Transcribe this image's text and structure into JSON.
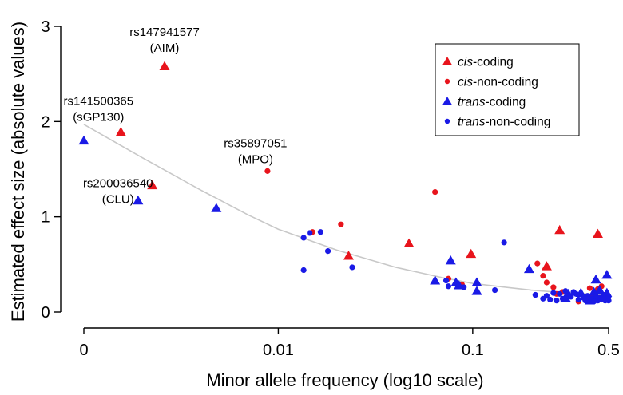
{
  "chart_data": {
    "type": "scatter",
    "xlabel": "Minor allele frequency (log10 scale)",
    "ylabel": "Estimated effect size (absolute values)",
    "x_scale": "log10",
    "ylim": [
      0,
      3
    ],
    "x_ticks": [
      {
        "value": 0.001,
        "label": "0"
      },
      {
        "value": 0.01,
        "label": "0.01"
      },
      {
        "value": 0.1,
        "label": "0.1"
      },
      {
        "value": 0.5,
        "label": "0.5"
      }
    ],
    "y_ticks": [
      {
        "value": 0,
        "label": "0"
      },
      {
        "value": 1,
        "label": "1"
      },
      {
        "value": 2,
        "label": "2"
      },
      {
        "value": 3,
        "label": "3"
      }
    ],
    "legend_position": "top-right",
    "legend": [
      {
        "series": "cis-coding",
        "italic": "cis",
        "rest": "-coding",
        "color": "#e8141c",
        "shape": "triangle"
      },
      {
        "series": "cis-non-coding",
        "italic": "cis",
        "rest": "-non-coding",
        "color": "#e8141c",
        "shape": "circle"
      },
      {
        "series": "trans-coding",
        "italic": "trans",
        "rest": "-coding",
        "color": "#1a1ae6",
        "shape": "triangle"
      },
      {
        "series": "trans-non-coding",
        "italic": "trans",
        "rest": "-non-coding",
        "color": "#1a1ae6",
        "shape": "circle"
      }
    ],
    "trend_line": {
      "color": "#c8c8c8",
      "points": [
        [
          0.001,
          1.97
        ],
        [
          0.002,
          1.62
        ],
        [
          0.004,
          1.28
        ],
        [
          0.007,
          1.02
        ],
        [
          0.01,
          0.87
        ],
        [
          0.02,
          0.65
        ],
        [
          0.04,
          0.47
        ],
        [
          0.07,
          0.36
        ],
        [
          0.1,
          0.3
        ],
        [
          0.2,
          0.23
        ],
        [
          0.3,
          0.2
        ],
        [
          0.5,
          0.18
        ]
      ]
    },
    "series": [
      {
        "name": "cis-coding",
        "color": "#e8141c",
        "shape": "triangle",
        "points": [
          [
            0.00155,
            1.89
          ],
          [
            0.0026,
            2.58
          ],
          [
            0.00225,
            1.33
          ],
          [
            0.023,
            0.59
          ],
          [
            0.047,
            0.72
          ],
          [
            0.098,
            0.61
          ],
          [
            0.28,
            0.86
          ],
          [
            0.24,
            0.48
          ],
          [
            0.44,
            0.82
          ]
        ]
      },
      {
        "name": "cis-non-coding",
        "color": "#e8141c",
        "shape": "circle",
        "points": [
          [
            0.0088,
            1.48
          ],
          [
            0.064,
            1.26
          ],
          [
            0.015,
            0.84
          ],
          [
            0.021,
            0.92
          ],
          [
            0.088,
            0.29
          ],
          [
            0.075,
            0.35
          ],
          [
            0.215,
            0.51
          ],
          [
            0.23,
            0.38
          ],
          [
            0.24,
            0.31
          ],
          [
            0.26,
            0.26
          ],
          [
            0.27,
            0.19
          ],
          [
            0.29,
            0.21
          ],
          [
            0.31,
            0.18
          ],
          [
            0.35,
            0.11
          ],
          [
            0.38,
            0.15
          ],
          [
            0.41,
            0.17
          ],
          [
            0.44,
            0.24
          ],
          [
            0.46,
            0.27
          ],
          [
            0.42,
            0.13
          ],
          [
            0.4,
            0.25
          ],
          [
            0.43,
            0.2
          ]
        ]
      },
      {
        "name": "trans-coding",
        "color": "#1a1ae6",
        "shape": "triangle",
        "points": [
          [
            0.001,
            1.8
          ],
          [
            0.0019,
            1.17
          ],
          [
            0.0048,
            1.09
          ],
          [
            0.064,
            0.33
          ],
          [
            0.077,
            0.54
          ],
          [
            0.082,
            0.31
          ],
          [
            0.085,
            0.28
          ],
          [
            0.105,
            0.31
          ],
          [
            0.105,
            0.22
          ],
          [
            0.195,
            0.45
          ],
          [
            0.3,
            0.15
          ],
          [
            0.31,
            0.19
          ],
          [
            0.36,
            0.2
          ],
          [
            0.4,
            0.12
          ],
          [
            0.43,
            0.34
          ],
          [
            0.45,
            0.23
          ],
          [
            0.49,
            0.39
          ],
          [
            0.49,
            0.2
          ],
          [
            0.47,
            0.16
          ],
          [
            0.42,
            0.21
          ]
        ]
      },
      {
        "name": "trans-non-coding",
        "color": "#1a1ae6",
        "shape": "circle",
        "points": [
          [
            0.0135,
            0.78
          ],
          [
            0.0165,
            0.84
          ],
          [
            0.0145,
            0.83
          ],
          [
            0.018,
            0.64
          ],
          [
            0.024,
            0.47
          ],
          [
            0.0135,
            0.44
          ],
          [
            0.073,
            0.33
          ],
          [
            0.075,
            0.27
          ],
          [
            0.09,
            0.26
          ],
          [
            0.13,
            0.23
          ],
          [
            0.145,
            0.73
          ],
          [
            0.24,
            0.17
          ],
          [
            0.25,
            0.13
          ],
          [
            0.26,
            0.2
          ],
          [
            0.28,
            0.19
          ],
          [
            0.29,
            0.14
          ],
          [
            0.3,
            0.22
          ],
          [
            0.32,
            0.16
          ],
          [
            0.34,
            0.19
          ],
          [
            0.35,
            0.13
          ],
          [
            0.37,
            0.15
          ],
          [
            0.38,
            0.12
          ],
          [
            0.39,
            0.17
          ],
          [
            0.41,
            0.14
          ],
          [
            0.42,
            0.11
          ],
          [
            0.43,
            0.16
          ],
          [
            0.44,
            0.12
          ],
          [
            0.45,
            0.15
          ],
          [
            0.46,
            0.13
          ],
          [
            0.47,
            0.18
          ],
          [
            0.48,
            0.12
          ],
          [
            0.49,
            0.14
          ],
          [
            0.5,
            0.16
          ],
          [
            0.5,
            0.12
          ],
          [
            0.33,
            0.21
          ],
          [
            0.27,
            0.12
          ],
          [
            0.21,
            0.18
          ],
          [
            0.23,
            0.14
          ]
        ]
      }
    ],
    "annotations": [
      {
        "label": "rs147941577",
        "gene": "(AIM)",
        "anchor": [
          0.0026,
          2.58
        ]
      },
      {
        "label": "rs141500365",
        "gene": "(sGP130)",
        "anchor": [
          0.00155,
          1.89
        ]
      },
      {
        "label": "rs35897051",
        "gene": "(MPO)",
        "anchor": [
          0.0088,
          1.48
        ]
      },
      {
        "label": "rs200036540",
        "gene": "(CLU)",
        "anchor": [
          0.00225,
          1.33
        ]
      }
    ]
  }
}
